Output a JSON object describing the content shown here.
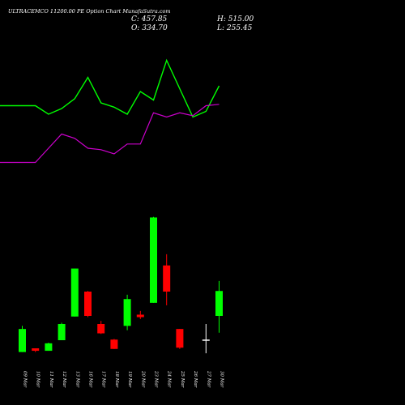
{
  "header": {
    "title": "ULTRACEMCO 11200.00  PE Option  Chart MunafaSutra.com",
    "close": "C: 457.85",
    "open": "O: 334.70",
    "high": "H: 515.00",
    "low": "L: 255.45"
  },
  "colors": {
    "background": "#000000",
    "up": "#00ff00",
    "down": "#ff0000",
    "neutral": "#ffffff",
    "line1": "#00ff00",
    "line2": "#cc00cc",
    "text": "#ffffff"
  },
  "chart_data": [
    {
      "type": "line",
      "title": "",
      "x": [
        "09 Mar",
        "10 Mar",
        "11 Mar",
        "12 Mar",
        "13 Mar",
        "16 Mar",
        "17 Mar",
        "18 Mar",
        "19 Mar",
        "20 Mar",
        "23 Mar",
        "24 Mar",
        "25 Mar",
        "26 Mar",
        "27 Mar",
        "30 Mar"
      ],
      "series": [
        {
          "color": "#00ff00",
          "values": [
            3.7,
            3.7,
            3.4,
            3.6,
            3.95,
            4.7,
            3.8,
            3.65,
            3.4,
            4.2,
            3.9,
            5.3,
            4.3,
            3.3,
            3.5,
            4.4
          ]
        },
        {
          "color": "#cc00cc",
          "values": [
            1.7,
            1.7,
            2.2,
            2.7,
            2.55,
            2.2,
            2.15,
            2.0,
            2.35,
            2.35,
            3.45,
            3.3,
            3.45,
            3.35,
            3.7,
            3.75
          ]
        }
      ],
      "ylim": [
        0,
        6
      ],
      "grid": false
    },
    {
      "type": "candlestick",
      "x": [
        "09 Mar",
        "10 Mar",
        "11 Mar",
        "12 Mar",
        "13 Mar",
        "16 Mar",
        "17 Mar",
        "18 Mar",
        "19 Mar",
        "20 Mar",
        "23 Mar",
        "24 Mar",
        "25 Mar",
        "26 Mar",
        "27 Mar",
        "30 Mar"
      ],
      "ohlc": [
        [
          20,
          57,
          62,
          20
        ],
        [
          26,
          22,
          26,
          20
        ],
        [
          22,
          34,
          35,
          22
        ],
        [
          39,
          65,
          67,
          39
        ],
        [
          77,
          154,
          154,
          77
        ],
        [
          117,
          78,
          118,
          76
        ],
        [
          65,
          50,
          70,
          49
        ],
        [
          40,
          25,
          41,
          25
        ],
        [
          62,
          105,
          112,
          55
        ],
        [
          80,
          76,
          86,
          73
        ],
        [
          99,
          236,
          237,
          99
        ],
        [
          159,
          117,
          177,
          95
        ],
        [
          57,
          27,
          57,
          25
        ],
        [
          40,
          40,
          65,
          18
        ],
        [
          78,
          118,
          134,
          51
        ]
      ],
      "ohlc_dates": [
        "09 Mar",
        "10 Mar",
        "11 Mar",
        "12 Mar",
        "13 Mar",
        "16 Mar",
        "17 Mar",
        "18 Mar",
        "19 Mar",
        "20 Mar",
        "23 Mar",
        "24 Mar",
        "25 Mar",
        "27 Mar",
        "30 Mar"
      ],
      "ylim": [
        0,
        260
      ],
      "grid": false
    }
  ]
}
